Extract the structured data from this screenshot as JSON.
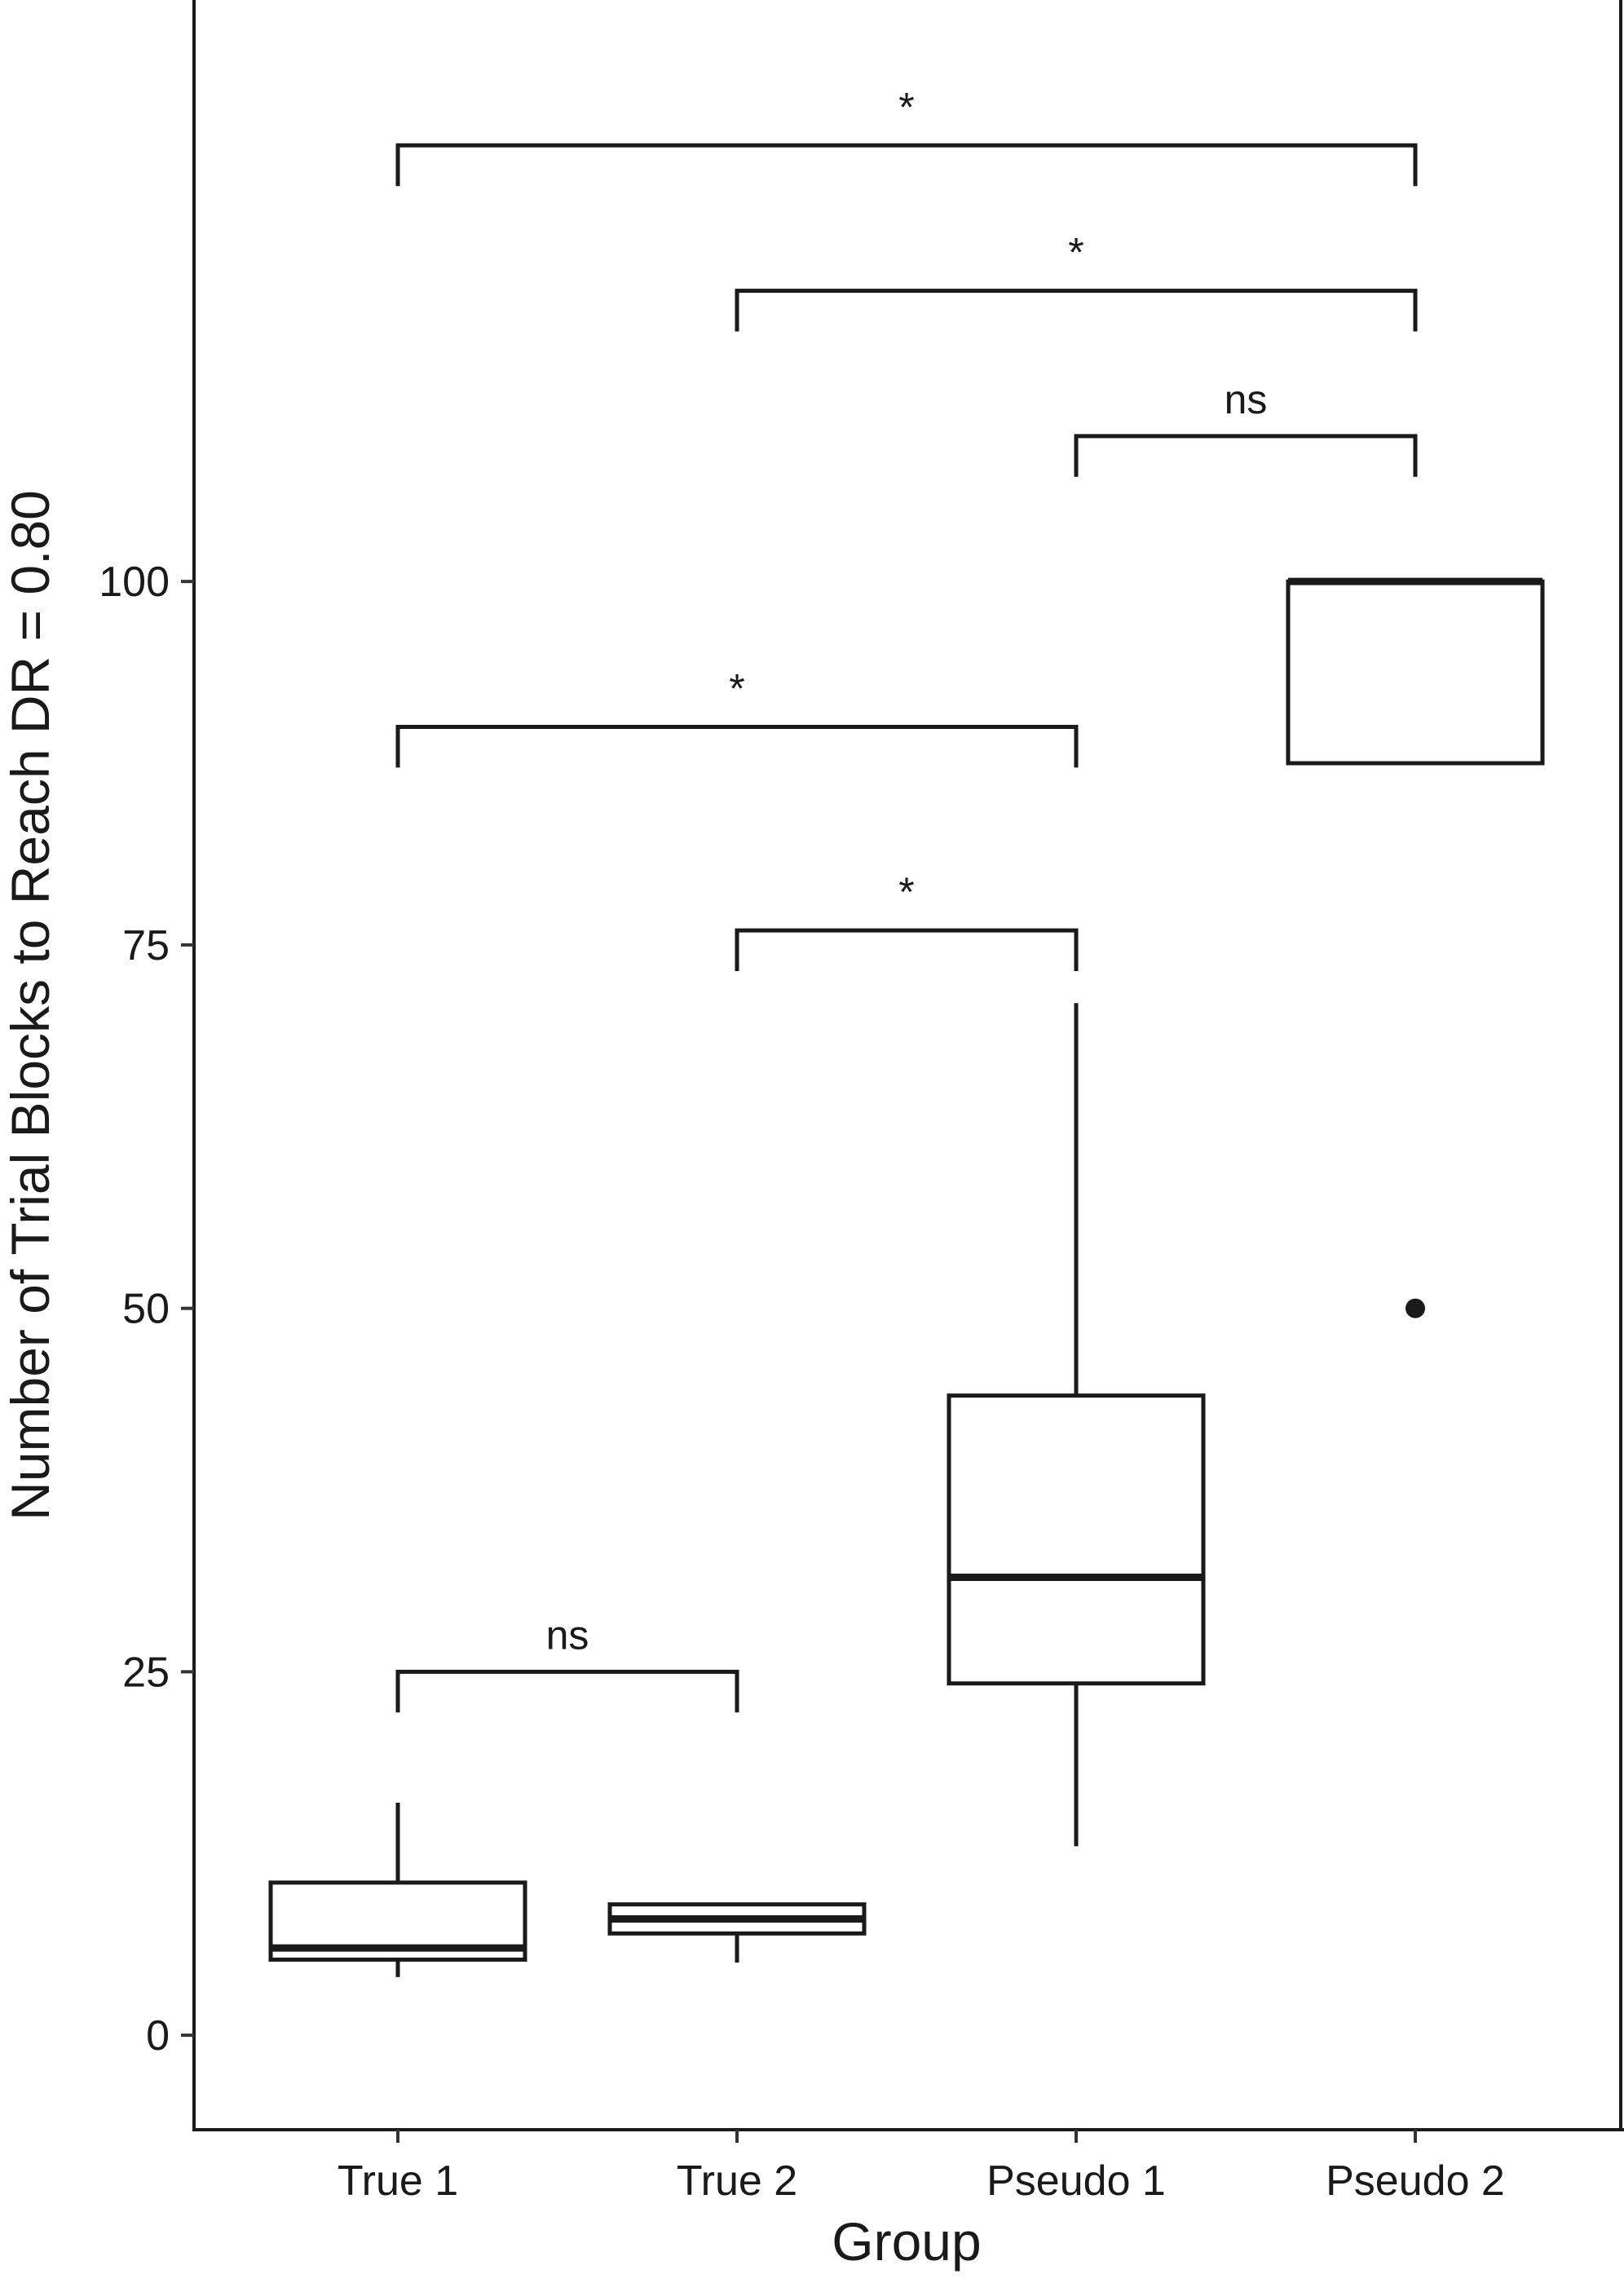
{
  "chart_data": {
    "type": "box",
    "xlabel": "Group",
    "ylabel": "Number of Trial Blocks to Reach DR = 0.80",
    "ylim": [
      -6.5,
      140
    ],
    "yticks": [
      0,
      25,
      50,
      75,
      100
    ],
    "yticklabels": [
      "0",
      "25",
      "50",
      "75",
      "100"
    ],
    "categories": [
      "True 1",
      "True 2",
      "Pseudo 1",
      "Pseudo 2"
    ],
    "boxes": [
      {
        "group": "True 1",
        "whisker_low": 4,
        "q1": 5.2,
        "median": 6,
        "q3": 10.5,
        "whisker_high": 16,
        "outliers": []
      },
      {
        "group": "True 2",
        "whisker_low": 5,
        "q1": 7,
        "median": 8,
        "q3": 9,
        "whisker_high": 9,
        "outliers": []
      },
      {
        "group": "Pseudo 1",
        "whisker_low": 13,
        "q1": 24.2,
        "median": 31.5,
        "q3": 44,
        "whisker_high": 71,
        "outliers": []
      },
      {
        "group": "Pseudo 2",
        "whisker_low": 87.5,
        "q1": 87.5,
        "median": 100,
        "q3": 100,
        "whisker_high": 100,
        "outliers": [
          50
        ]
      }
    ],
    "comparisons": [
      {
        "from": "True 1",
        "to": "True 2",
        "label": "ns",
        "y": 25,
        "left_tick_to": 22.2,
        "right_tick_to": 22.2
      },
      {
        "from": "True 2",
        "to": "Pseudo 1",
        "label": "*",
        "y": 76,
        "left_tick_to": 73.2,
        "right_tick_to": 73.2
      },
      {
        "from": "True 1",
        "to": "Pseudo 1",
        "label": "*",
        "y": 90,
        "left_tick_to": 87.2,
        "right_tick_to": 87.2
      },
      {
        "from": "Pseudo 1",
        "to": "Pseudo 2",
        "label": "ns",
        "y": 110,
        "left_tick_to": 107.2,
        "right_tick_to": 107.2
      },
      {
        "from": "True 2",
        "to": "Pseudo 2",
        "label": "*",
        "y": 120,
        "left_tick_to": 117.2,
        "right_tick_to": 117.2
      },
      {
        "from": "True 1",
        "to": "Pseudo 2",
        "label": "*",
        "y": 130,
        "left_tick_to": 127.2,
        "right_tick_to": 127.2
      }
    ],
    "grid": false,
    "legend": "none"
  }
}
